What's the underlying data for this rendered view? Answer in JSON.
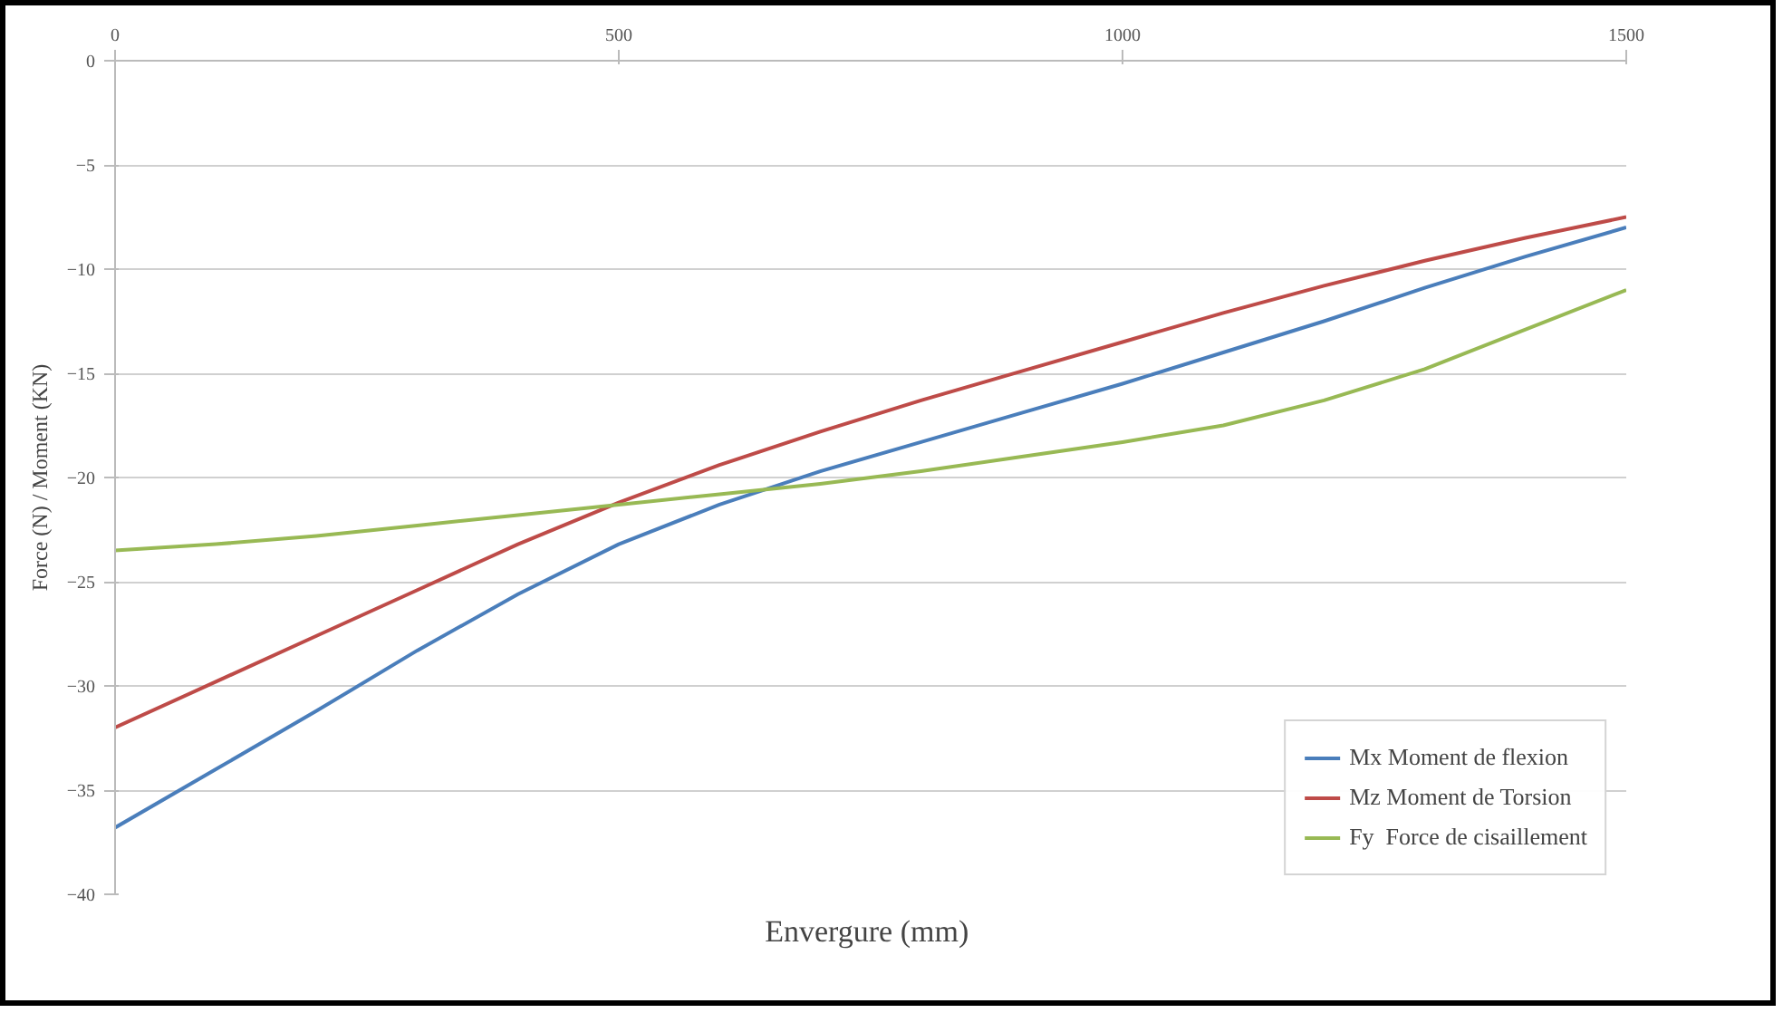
{
  "chart_data": {
    "type": "line",
    "xlabel": "Envergure  (mm)",
    "ylabel": "Force (N) / Moment (KN)",
    "x": [
      0,
      100,
      200,
      300,
      400,
      500,
      600,
      700,
      800,
      900,
      1000,
      1100,
      1200,
      1300,
      1400,
      1500
    ],
    "series": [
      {
        "name": "Mx Moment de flexion",
        "color": "#4a7ebb",
        "values": [
          -36.8,
          -34,
          -31.2,
          -28.3,
          -25.6,
          -23.2,
          -21.3,
          -19.7,
          -18.3,
          -16.9,
          -15.5,
          -14.0,
          -12.5,
          -10.9,
          -9.4,
          -8.0
        ]
      },
      {
        "name": "Mz Moment de Torsion",
        "color": "#be4b48",
        "values": [
          -32,
          -29.8,
          -27.6,
          -25.4,
          -23.2,
          -21.2,
          -19.4,
          -17.8,
          -16.3,
          -14.9,
          -13.5,
          -12.1,
          -10.8,
          -9.6,
          -8.5,
          -7.5
        ]
      },
      {
        "name": "Fy  Force de cisaillement",
        "color": "#98b954",
        "values": [
          -23.5,
          -23.2,
          -22.8,
          -22.3,
          -21.8,
          -21.3,
          -20.8,
          -20.3,
          -19.7,
          -19.0,
          -18.3,
          -17.5,
          -16.3,
          -14.8,
          -12.9,
          -11.0
        ]
      }
    ],
    "xlim": [
      0,
      1500
    ],
    "xticks": [
      0,
      500,
      1000,
      1500
    ],
    "ylim": [
      -40,
      0
    ],
    "yticks": [
      0,
      -5,
      -10,
      -15,
      -20,
      -25,
      -30,
      -35,
      -40
    ],
    "grid": "y",
    "legend": "bottom right",
    "marker": "none",
    "line_style": "solid"
  }
}
